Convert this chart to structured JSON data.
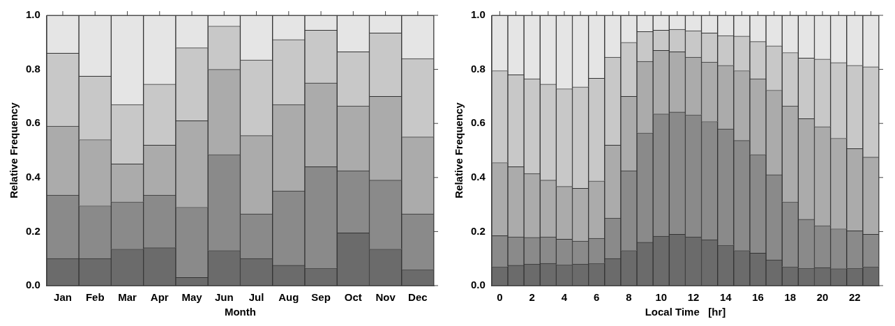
{
  "chart_data": [
    {
      "type": "bar",
      "stacked": true,
      "categories": [
        "Jan",
        "Feb",
        "Mar",
        "Apr",
        "May",
        "Jun",
        "Jul",
        "Aug",
        "Sep",
        "Oct",
        "Nov",
        "Dec"
      ],
      "xlabel": "Month",
      "ylabel": "Relative Frequency",
      "ylim": [
        0,
        1
      ],
      "yticks": [
        {
          "value": 0,
          "label": "0.0"
        },
        {
          "value": 0.2,
          "label": "0.2"
        },
        {
          "value": 0.4,
          "label": "0.4"
        },
        {
          "value": 0.6,
          "label": "0.6"
        },
        {
          "value": 0.8,
          "label": "0.8"
        },
        {
          "value": 1,
          "label": "1.0"
        }
      ],
      "grid": false,
      "legend": false,
      "series": [
        {
          "color": "#6b6b6b",
          "values": [
            0.1,
            0.1,
            0.135,
            0.14,
            0.03,
            0.13,
            0.1,
            0.075,
            0.065,
            0.195,
            0.135,
            0.06
          ]
        },
        {
          "color": "#8a8a8a",
          "values": [
            0.235,
            0.195,
            0.175,
            0.195,
            0.26,
            0.355,
            0.165,
            0.275,
            0.375,
            0.23,
            0.255,
            0.205
          ]
        },
        {
          "color": "#ababab",
          "values": [
            0.255,
            0.245,
            0.14,
            0.185,
            0.32,
            0.315,
            0.29,
            0.32,
            0.31,
            0.24,
            0.31,
            0.285
          ]
        },
        {
          "color": "#c8c8c8",
          "values": [
            0.27,
            0.235,
            0.22,
            0.225,
            0.27,
            0.16,
            0.28,
            0.24,
            0.195,
            0.2,
            0.235,
            0.29
          ]
        },
        {
          "color": "#e5e5e5",
          "values": [
            0.14,
            0.225,
            0.33,
            0.255,
            0.12,
            0.04,
            0.165,
            0.09,
            0.055,
            0.135,
            0.065,
            0.16
          ]
        }
      ]
    },
    {
      "type": "bar",
      "stacked": true,
      "categories": [
        "0",
        null,
        "2",
        null,
        "4",
        null,
        "6",
        null,
        "8",
        null,
        "10",
        null,
        "12",
        null,
        "14",
        null,
        "16",
        null,
        "18",
        null,
        "20",
        null,
        "22",
        null
      ],
      "xlabel": "Local Time   [hr]",
      "ylabel": "Relative Frequency",
      "ylim": [
        0,
        1
      ],
      "yticks": [
        {
          "value": 0,
          "label": "0.0"
        },
        {
          "value": 0.2,
          "label": "0.2"
        },
        {
          "value": 0.4,
          "label": "0.4"
        },
        {
          "value": 0.6,
          "label": "0.6"
        },
        {
          "value": 0.8,
          "label": "0.8"
        },
        {
          "value": 1,
          "label": "1.0"
        }
      ],
      "grid": false,
      "legend": false,
      "series": [
        {
          "color": "#6b6b6b",
          "values": [
            0.07,
            0.075,
            0.08,
            0.082,
            0.078,
            0.08,
            0.083,
            0.1,
            0.13,
            0.16,
            0.183,
            0.19,
            0.18,
            0.17,
            0.15,
            0.13,
            0.12,
            0.095,
            0.07,
            0.065,
            0.067,
            0.063,
            0.065,
            0.07
          ]
        },
        {
          "color": "#8a8a8a",
          "values": [
            0.115,
            0.105,
            0.098,
            0.098,
            0.094,
            0.085,
            0.092,
            0.15,
            0.295,
            0.405,
            0.452,
            0.452,
            0.452,
            0.437,
            0.43,
            0.407,
            0.365,
            0.315,
            0.24,
            0.18,
            0.155,
            0.147,
            0.138,
            0.12
          ]
        },
        {
          "color": "#ababab",
          "values": [
            0.27,
            0.26,
            0.237,
            0.21,
            0.195,
            0.195,
            0.212,
            0.27,
            0.275,
            0.265,
            0.235,
            0.223,
            0.213,
            0.22,
            0.235,
            0.258,
            0.28,
            0.313,
            0.355,
            0.373,
            0.366,
            0.335,
            0.304,
            0.285
          ]
        },
        {
          "color": "#c8c8c8",
          "values": [
            0.34,
            0.34,
            0.35,
            0.355,
            0.361,
            0.375,
            0.38,
            0.325,
            0.2,
            0.11,
            0.075,
            0.083,
            0.098,
            0.108,
            0.11,
            0.128,
            0.138,
            0.164,
            0.197,
            0.224,
            0.25,
            0.28,
            0.308,
            0.335
          ]
        },
        {
          "color": "#e5e5e5",
          "values": [
            0.205,
            0.22,
            0.235,
            0.255,
            0.272,
            0.265,
            0.233,
            0.155,
            0.1,
            0.06,
            0.055,
            0.052,
            0.057,
            0.065,
            0.075,
            0.077,
            0.097,
            0.113,
            0.138,
            0.158,
            0.162,
            0.175,
            0.185,
            0.19
          ]
        }
      ]
    }
  ]
}
